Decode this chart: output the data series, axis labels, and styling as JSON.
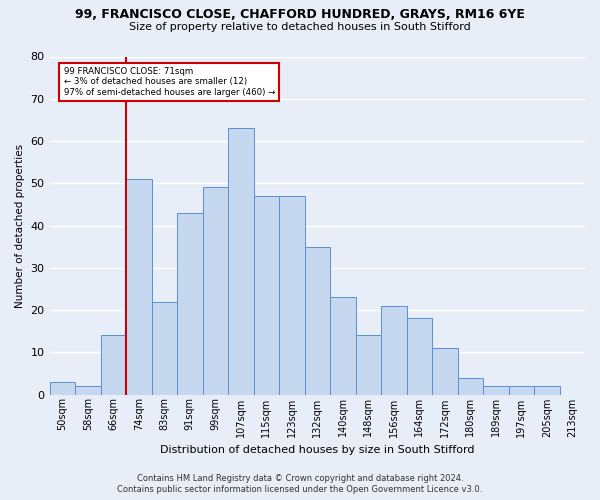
{
  "title1": "99, FRANCISCO CLOSE, CHAFFORD HUNDRED, GRAYS, RM16 6YE",
  "title2": "Size of property relative to detached houses in South Stifford",
  "xlabel": "Distribution of detached houses by size in South Stifford",
  "ylabel": "Number of detached properties",
  "footnote1": "Contains HM Land Registry data © Crown copyright and database right 2024.",
  "footnote2": "Contains public sector information licensed under the Open Government Licence v3.0.",
  "annotation_line1": "99 FRANCISCO CLOSE: 71sqm",
  "annotation_line2": "← 3% of detached houses are smaller (12)",
  "annotation_line3": "97% of semi-detached houses are larger (460) →",
  "bar_color": "#c5d8f0",
  "bar_edge_color": "#5b8fd4",
  "vline_color": "#cc0000",
  "annotation_box_color": "#cc0000",
  "bg_color": "#e8eef7",
  "grid_color": "#ffffff",
  "categories": [
    "50sqm",
    "58sqm",
    "66sqm",
    "74sqm",
    "83sqm",
    "91sqm",
    "99sqm",
    "107sqm",
    "115sqm",
    "123sqm",
    "132sqm",
    "140sqm",
    "148sqm",
    "156sqm",
    "164sqm",
    "172sqm",
    "180sqm",
    "189sqm",
    "197sqm",
    "205sqm",
    "213sqm"
  ],
  "values": [
    3,
    2,
    14,
    51,
    22,
    43,
    49,
    63,
    47,
    47,
    35,
    23,
    14,
    21,
    18,
    11,
    4,
    2,
    2,
    2,
    0
  ],
  "vline_x_index": 2.5,
  "ylim": [
    0,
    80
  ],
  "yticks": [
    0,
    10,
    20,
    30,
    40,
    50,
    60,
    70,
    80
  ]
}
